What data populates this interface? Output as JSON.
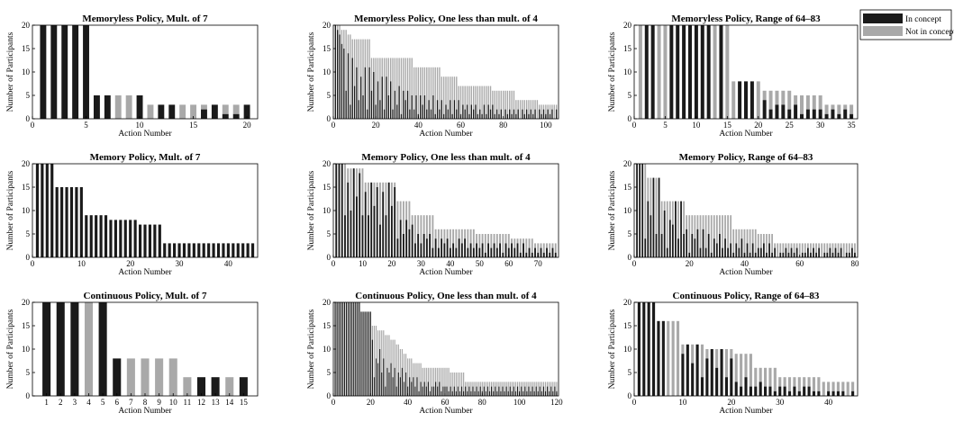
{
  "legend": {
    "items": [
      {
        "label": "In concept",
        "color": "#1a1a1a"
      },
      {
        "label": "Not in concept",
        "color": "#a9a9a9"
      }
    ]
  },
  "colors": {
    "in": "#1a1a1a",
    "not": "#a9a9a9",
    "axis": "#000000"
  },
  "chart_data": [
    {
      "type": "bar",
      "title": "Memoryless Policy, Mult. of 7",
      "xlabel": "Action Number",
      "ylabel": "Number of Participants",
      "xlim": [
        0,
        21
      ],
      "ylim": [
        0,
        20
      ],
      "xticks": [
        0,
        5,
        10,
        15,
        20
      ],
      "yticks": [
        0,
        5,
        10,
        15,
        20
      ],
      "n": 20,
      "heights": [
        20,
        20,
        20,
        20,
        20,
        5,
        5,
        5,
        5,
        5,
        3,
        3,
        3,
        3,
        3,
        3,
        3,
        3,
        3,
        3
      ],
      "in": [
        20,
        20,
        20,
        20,
        20,
        5,
        5,
        0,
        0,
        5,
        0,
        3,
        3,
        0,
        0,
        2,
        3,
        1,
        1,
        3
      ]
    },
    {
      "type": "bar",
      "title": "Memoryless Policy, One less than mult. of 4",
      "xlabel": "Action Number",
      "ylabel": "Number of Participants",
      "xlim": [
        0,
        106
      ],
      "ylim": [
        0,
        20
      ],
      "xticks": [
        0,
        20,
        40,
        60,
        80,
        100
      ],
      "yticks": [
        0,
        5,
        10,
        15,
        20
      ],
      "n": 105,
      "profile": [
        [
          1,
          20
        ],
        [
          5,
          19
        ],
        [
          9,
          17
        ],
        [
          17,
          17
        ],
        [
          18,
          13
        ],
        [
          37,
          13
        ],
        [
          38,
          11
        ],
        [
          50,
          11
        ],
        [
          51,
          9
        ],
        [
          58,
          9
        ],
        [
          59,
          7
        ],
        [
          74,
          7
        ],
        [
          75,
          6
        ],
        [
          85,
          6
        ],
        [
          86,
          4
        ],
        [
          96,
          4
        ],
        [
          97,
          3
        ],
        [
          105,
          3
        ]
      ],
      "in_profile": [
        [
          1,
          20
        ],
        [
          6,
          14
        ],
        [
          10,
          12
        ],
        [
          20,
          10
        ],
        [
          30,
          7
        ],
        [
          40,
          5
        ],
        [
          55,
          4
        ],
        [
          70,
          3
        ],
        [
          85,
          2
        ],
        [
          105,
          2
        ]
      ],
      "in_pattern": [
        1,
        0.6,
        0.95,
        0.3,
        0.8,
        0.45,
        1,
        0.2
      ],
      "tall_in_steps": 5
    },
    {
      "type": "bar",
      "title": "Memoryless Policy, Range of 64–83",
      "xlabel": "Action Number",
      "ylabel": "Number of Participants",
      "xlim": [
        0,
        36
      ],
      "ylim": [
        0,
        20
      ],
      "xticks": [
        0,
        5,
        10,
        15,
        20,
        25,
        30,
        35
      ],
      "yticks": [
        0,
        5,
        10,
        15,
        20
      ],
      "n": 35,
      "heights": [
        20,
        20,
        20,
        20,
        20,
        20,
        20,
        20,
        20,
        20,
        20,
        20,
        20,
        20,
        20,
        8,
        8,
        8,
        8,
        8,
        6,
        6,
        6,
        6,
        6,
        5,
        5,
        5,
        5,
        5,
        3,
        3,
        3,
        3,
        3
      ],
      "in": [
        0,
        20,
        20,
        0,
        0,
        20,
        20,
        20,
        20,
        20,
        20,
        20,
        0,
        20,
        0,
        0,
        8,
        8,
        8,
        0,
        4,
        2,
        3,
        3,
        2,
        3,
        1,
        2,
        2,
        2,
        1,
        2,
        1,
        2,
        1
      ]
    },
    {
      "type": "bar",
      "title": "Memory Policy, Mult. of 7",
      "xlabel": "Action Number",
      "ylabel": "Number of Participants",
      "xlim": [
        0,
        46
      ],
      "ylim": [
        0,
        20
      ],
      "xticks": [
        0,
        10,
        20,
        30,
        40
      ],
      "yticks": [
        0,
        5,
        10,
        15,
        20
      ],
      "n": 45,
      "profile": [
        [
          1,
          20
        ],
        [
          4,
          20
        ],
        [
          5,
          15
        ],
        [
          10,
          15
        ],
        [
          11,
          9
        ],
        [
          15,
          9
        ],
        [
          16,
          8
        ],
        [
          21,
          8
        ],
        [
          22,
          7
        ],
        [
          26,
          7
        ],
        [
          27,
          3
        ],
        [
          45,
          3
        ]
      ],
      "in_profile": [
        [
          1,
          20
        ],
        [
          4,
          20
        ],
        [
          5,
          15
        ],
        [
          10,
          15
        ],
        [
          11,
          9
        ],
        [
          15,
          9
        ],
        [
          16,
          8
        ],
        [
          21,
          8
        ],
        [
          22,
          7
        ],
        [
          26,
          7
        ],
        [
          27,
          3
        ],
        [
          45,
          3
        ]
      ],
      "in_pattern": [
        1
      ],
      "tall_in_steps": 0
    },
    {
      "type": "bar",
      "title": "Memory Policy, One less than mult. of 4",
      "xlabel": "Action Number",
      "ylabel": "Number of Participants",
      "xlim": [
        0,
        77
      ],
      "ylim": [
        0,
        20
      ],
      "xticks": [
        0,
        10,
        20,
        30,
        40,
        50,
        60,
        70
      ],
      "yticks": [
        0,
        5,
        10,
        15,
        20
      ],
      "n": 76,
      "profile": [
        [
          1,
          20
        ],
        [
          4,
          20
        ],
        [
          5,
          19
        ],
        [
          10,
          19
        ],
        [
          11,
          16
        ],
        [
          21,
          16
        ],
        [
          22,
          12
        ],
        [
          26,
          12
        ],
        [
          27,
          9
        ],
        [
          34,
          9
        ],
        [
          35,
          6
        ],
        [
          48,
          6
        ],
        [
          49,
          5
        ],
        [
          60,
          5
        ],
        [
          61,
          4
        ],
        [
          76,
          3
        ]
      ],
      "in_profile": [
        [
          1,
          20
        ],
        [
          4,
          20
        ],
        [
          5,
          19
        ],
        [
          10,
          19
        ],
        [
          11,
          16
        ],
        [
          21,
          16
        ],
        [
          22,
          9
        ],
        [
          26,
          8
        ],
        [
          30,
          5
        ],
        [
          40,
          4
        ],
        [
          55,
          3
        ],
        [
          76,
          2
        ]
      ],
      "in_pattern": [
        1,
        0.7,
        0.95,
        0.45,
        0.85,
        0.55
      ],
      "tall_in_steps": 3
    },
    {
      "type": "bar",
      "title": "Memory Policy, Range of 64–83",
      "xlabel": "Action Number",
      "ylabel": "Number of Participants",
      "xlim": [
        0,
        81
      ],
      "ylim": [
        0,
        20
      ],
      "xticks": [
        0,
        20,
        40,
        60,
        80
      ],
      "yticks": [
        0,
        5,
        10,
        15,
        20
      ],
      "n": 80,
      "profile": [
        [
          1,
          20
        ],
        [
          4,
          20
        ],
        [
          5,
          17
        ],
        [
          9,
          17
        ],
        [
          10,
          12
        ],
        [
          18,
          12
        ],
        [
          19,
          9
        ],
        [
          35,
          9
        ],
        [
          36,
          6
        ],
        [
          44,
          6
        ],
        [
          45,
          5
        ],
        [
          50,
          5
        ],
        [
          51,
          3
        ],
        [
          80,
          3
        ]
      ],
      "in_profile": [
        [
          1,
          20
        ],
        [
          4,
          20
        ],
        [
          5,
          17
        ],
        [
          9,
          17
        ],
        [
          10,
          12
        ],
        [
          18,
          12
        ],
        [
          19,
          7
        ],
        [
          25,
          6
        ],
        [
          35,
          4
        ],
        [
          45,
          3
        ],
        [
          55,
          2
        ],
        [
          80,
          2
        ]
      ],
      "in_pattern": [
        1,
        0.4,
        0.85,
        0.2,
        0.7,
        0.55,
        1,
        0.3
      ],
      "tall_in_steps": 3
    },
    {
      "type": "bar",
      "title": "Continuous Policy, Mult. of 7",
      "xlabel": "Action Number",
      "ylabel": "Number of Participants",
      "xlim": [
        0,
        16
      ],
      "ylim": [
        0,
        20
      ],
      "xticks": [
        1,
        2,
        3,
        4,
        5,
        6,
        7,
        8,
        9,
        10,
        11,
        12,
        13,
        14,
        15
      ],
      "yticks": [
        0,
        5,
        10,
        15,
        20
      ],
      "n": 15,
      "heights": [
        20,
        20,
        20,
        20,
        20,
        8,
        8,
        8,
        8,
        8,
        4,
        4,
        4,
        4,
        4
      ],
      "in": [
        20,
        20,
        20,
        0,
        20,
        8,
        0,
        0,
        0,
        0,
        0,
        4,
        4,
        0,
        4
      ]
    },
    {
      "type": "bar",
      "title": "Continuous Policy, One less than mult. of 4",
      "xlabel": "Action Number",
      "ylabel": "Number of Participants",
      "xlim": [
        0,
        121
      ],
      "ylim": [
        0,
        20
      ],
      "xticks": [
        0,
        20,
        40,
        60,
        80,
        100,
        120
      ],
      "yticks": [
        0,
        5,
        10,
        15,
        20
      ],
      "n": 120,
      "profile": [
        [
          1,
          20
        ],
        [
          14,
          20
        ],
        [
          15,
          18
        ],
        [
          20,
          18
        ],
        [
          21,
          15
        ],
        [
          26,
          14
        ],
        [
          32,
          12
        ],
        [
          38,
          9
        ],
        [
          44,
          7
        ],
        [
          50,
          6
        ],
        [
          62,
          6
        ],
        [
          63,
          5
        ],
        [
          70,
          5
        ],
        [
          71,
          3
        ],
        [
          120,
          3
        ]
      ],
      "in_profile": [
        [
          1,
          20
        ],
        [
          14,
          20
        ],
        [
          15,
          18
        ],
        [
          20,
          18
        ],
        [
          21,
          13
        ],
        [
          26,
          9
        ],
        [
          32,
          7
        ],
        [
          40,
          5
        ],
        [
          50,
          3
        ],
        [
          70,
          2
        ],
        [
          120,
          2
        ]
      ],
      "in_pattern": [
        1,
        0.5,
        0.9,
        0.3,
        0.75,
        0.6
      ],
      "tall_in_steps": 20
    },
    {
      "type": "bar",
      "title": "Continuous Policy, Range of 64–83",
      "xlabel": "Action Number",
      "ylabel": "Number of Participants",
      "xlim": [
        0,
        46
      ],
      "ylim": [
        0,
        20
      ],
      "xticks": [
        0,
        10,
        20,
        30,
        40
      ],
      "yticks": [
        0,
        5,
        10,
        15,
        20
      ],
      "n": 45,
      "profile": [
        [
          1,
          20
        ],
        [
          4,
          20
        ],
        [
          5,
          16
        ],
        [
          9,
          16
        ],
        [
          10,
          11
        ],
        [
          14,
          11
        ],
        [
          15,
          10
        ],
        [
          20,
          10
        ],
        [
          21,
          9
        ],
        [
          24,
          9
        ],
        [
          25,
          6
        ],
        [
          29,
          6
        ],
        [
          30,
          4
        ],
        [
          38,
          4
        ],
        [
          39,
          3
        ],
        [
          45,
          3
        ]
      ],
      "in_profile": [
        [
          1,
          20
        ],
        [
          4,
          20
        ],
        [
          5,
          16
        ],
        [
          6,
          16
        ],
        [
          7,
          0
        ],
        [
          9,
          0
        ],
        [
          10,
          11
        ],
        [
          14,
          11
        ],
        [
          15,
          10
        ],
        [
          20,
          10
        ],
        [
          21,
          3
        ],
        [
          24,
          4
        ],
        [
          25,
          3
        ],
        [
          29,
          2
        ],
        [
          30,
          2
        ],
        [
          45,
          1
        ]
      ],
      "in_pattern": [
        1,
        0.6,
        1,
        0.4,
        0.8
      ],
      "tall_in_steps": 6
    }
  ]
}
